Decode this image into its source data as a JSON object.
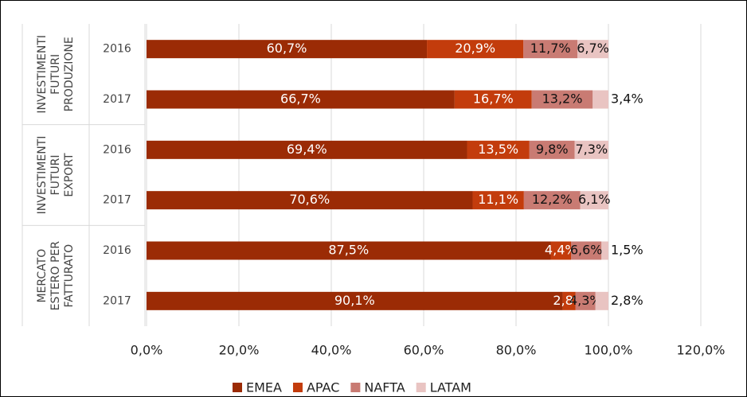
{
  "chart_data": {
    "type": "stacked-barh",
    "groups": [
      {
        "name_lines": [
          "INVESTIMENTI",
          "FUTURI",
          "PRODUZIONE"
        ],
        "categories": [
          "2016",
          "2017"
        ]
      },
      {
        "name_lines": [
          "INVESTIMENTI",
          "FUTURI",
          "EXPORT"
        ],
        "categories": [
          "2016",
          "2017"
        ]
      },
      {
        "name_lines": [
          "MERCATO",
          "ESTERO PER",
          "FATTURATO"
        ],
        "categories": [
          "2016",
          "2017"
        ]
      }
    ],
    "series": [
      {
        "name": "EMEA",
        "color": "#9b2b05",
        "values": [
          60.7,
          66.7,
          69.4,
          70.6,
          87.5,
          90.1
        ],
        "value_labels": [
          "60,7%",
          "66,7%",
          "69,4%",
          "70,6%",
          "87,5%",
          "90,1%"
        ]
      },
      {
        "name": "APAC",
        "color": "#c33c0c",
        "values": [
          20.9,
          16.7,
          13.5,
          11.1,
          4.4,
          2.8
        ],
        "value_labels": [
          "20,9%",
          "16,7%",
          "13,5%",
          "11,1%",
          "4,4%",
          "2,8%"
        ]
      },
      {
        "name": "NAFTA",
        "color": "#c97b73",
        "values": [
          11.7,
          13.2,
          9.8,
          12.2,
          6.6,
          4.3
        ],
        "value_labels": [
          "11,7%",
          "13,2%",
          "9,8%",
          "12,2%",
          "6,6%",
          "4,3%"
        ]
      },
      {
        "name": "LATAM",
        "color": "#e9c4c2",
        "values": [
          6.7,
          3.4,
          7.3,
          6.1,
          1.5,
          2.8
        ],
        "value_labels": [
          "6,7%",
          "3,4%",
          "7,3%",
          "6,1%",
          "1,5%",
          "2,8%"
        ]
      }
    ],
    "xlim": [
      0,
      120
    ],
    "xticks": [
      {
        "value": 0,
        "label": "0,0%"
      },
      {
        "value": 20,
        "label": "20,0%"
      },
      {
        "value": 40,
        "label": "40,0%"
      },
      {
        "value": 60,
        "label": "60,0%"
      },
      {
        "value": 80,
        "label": "80,0%"
      },
      {
        "value": 100,
        "label": "100,0%"
      },
      {
        "value": 120,
        "label": "120,0%"
      }
    ],
    "grid": true,
    "legend": "bottom"
  }
}
